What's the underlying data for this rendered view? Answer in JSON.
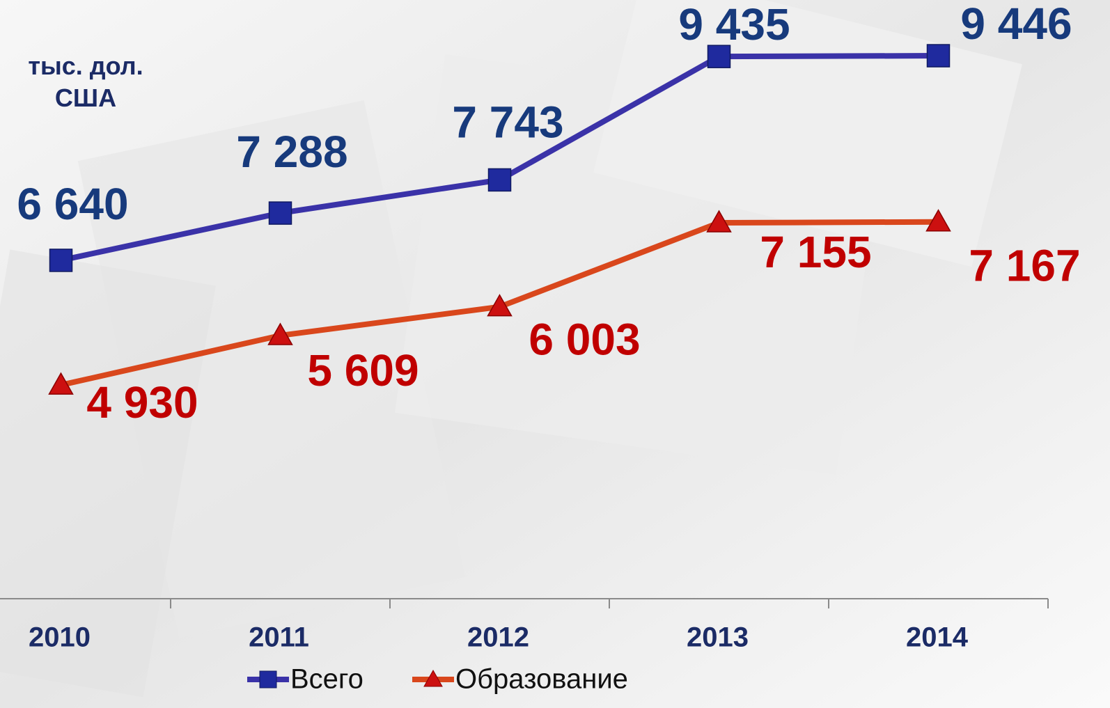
{
  "chart_data": {
    "type": "line",
    "y_label": "тыс. дол. США",
    "categories": [
      "2010",
      "2011",
      "2012",
      "2013",
      "2014"
    ],
    "ylim": [
      2000,
      10000
    ],
    "series": [
      {
        "name": "Всего",
        "color": "#3a32a8",
        "marker": "square",
        "marker_color": "#1f2a9e",
        "values": [
          6640,
          7288,
          7743,
          9435,
          9446
        ],
        "value_labels": [
          "6 640",
          "7 288",
          "7 743",
          "9 435",
          "9 446"
        ]
      },
      {
        "name": "Образование",
        "color": "#d9471c",
        "marker": "triangle",
        "marker_color": "#cc1010",
        "values": [
          4930,
          5609,
          6003,
          7155,
          7167
        ],
        "value_labels": [
          "4 930",
          "5 609",
          "6 003",
          "7 155",
          "7 167"
        ]
      }
    ]
  }
}
